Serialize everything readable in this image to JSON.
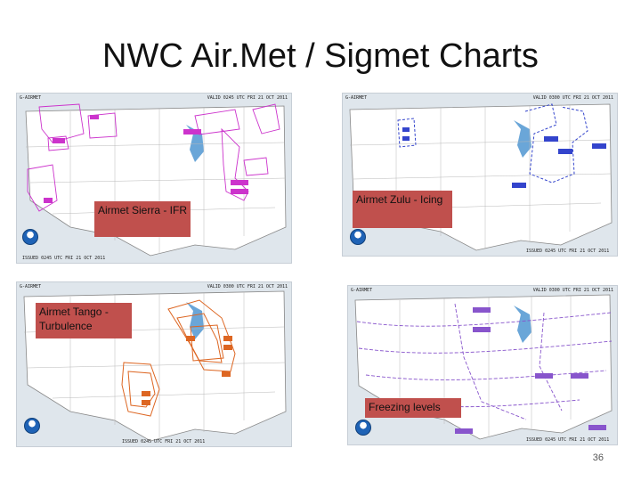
{
  "slide": {
    "title": "NWC Air.Met / Sigmet Charts",
    "page_number": "36"
  },
  "panels": [
    {
      "label": "Airmet Sierra - IFR",
      "header_left": "G-AIRMET",
      "header_right": "VALID 0245 UTC FRI 21 OCT 2011",
      "footer": "ISSUED 0245 UTC FRI 21 OCT 2011",
      "accent": "#cc33cc"
    },
    {
      "label": "Airmet Zulu - Icing",
      "header_left": "G-AIRMET",
      "header_right": "VALID 0300 UTC FRI 21 OCT 2011",
      "footer": "ISSUED 0245 UTC FRI 21 OCT 2011",
      "accent": "#3344cc"
    },
    {
      "label": "Airmet Tango - Turbulence",
      "header_left": "G-AIRMET",
      "header_right": "VALID 0300 UTC FRI 21 OCT 2011",
      "footer": "ISSUED 0245 UTC FRI 21 OCT 2011",
      "accent": "#dd6622"
    },
    {
      "label": "Freezing levels",
      "header_left": "G-AIRMET",
      "header_right": "VALID 0300 UTC FRI 21 OCT 2011",
      "footer": "ISSUED 0245 UTC FRI 21 OCT 2011",
      "accent": "#8855cc"
    }
  ]
}
